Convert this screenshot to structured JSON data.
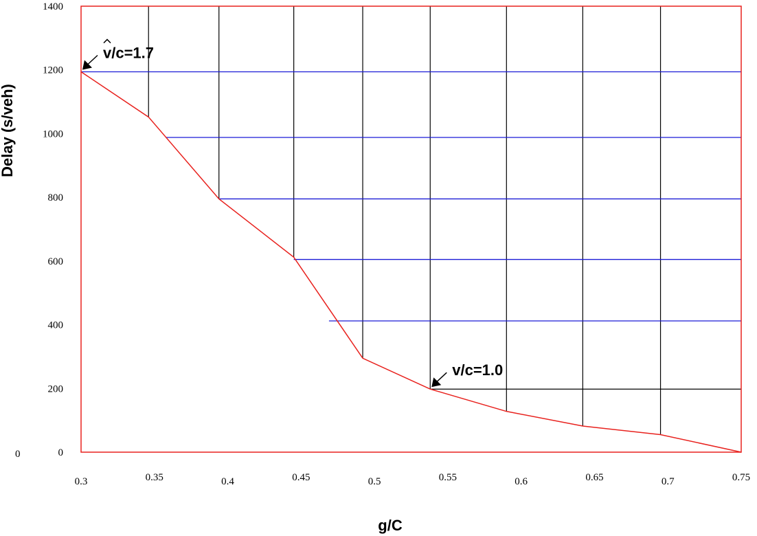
{
  "chart_data": {
    "type": "line",
    "xlabel": "g/C",
    "ylabel": "Delay (s/veh)",
    "xlim": [
      0.3,
      0.75
    ],
    "ylim": [
      0,
      1400
    ],
    "x_tick_labels": [
      "0.3",
      "0.35",
      "0.4",
      "0.45",
      "0.5",
      "0.55",
      "0.6",
      "0.65",
      "0.7",
      "0.75"
    ],
    "y_tick_labels": [
      "0",
      "200",
      "400",
      "600",
      "800",
      "1000",
      "1200",
      "1400"
    ],
    "origin_label": "0",
    "series": [
      {
        "color": "#e8211d",
        "x": [
          0.3,
          0.346,
          0.394,
          0.445,
          0.492,
          0.538,
          0.59,
          0.642,
          0.695,
          0.75
        ],
        "y": [
          1194,
          1052,
          795,
          612,
          295,
          198,
          128,
          82,
          55,
          0
        ]
      }
    ],
    "blue_lines": [
      {
        "y": 1194,
        "x_start": 0.3
      },
      {
        "y": 988,
        "x_start": 0.358
      },
      {
        "y": 795,
        "x_start": 0.394
      },
      {
        "y": 605,
        "x_start": 0.445
      },
      {
        "y": 412,
        "x_start": 0.469
      }
    ],
    "black_hline": {
      "y": 198,
      "x_start": 0.538
    },
    "vertical_grid_x": [
      0.346,
      0.394,
      0.445,
      0.492,
      0.538,
      0.59,
      0.642,
      0.695
    ],
    "annotations": [
      {
        "text": "v/c=1.7",
        "x": 0.3,
        "y": 1194,
        "hat": true
      },
      {
        "text": "v/c=1.0",
        "x": 0.538,
        "y": 198,
        "hat": false
      }
    ],
    "grid": true,
    "legend": "none",
    "colors": {
      "curve": "#e8211d",
      "frame": "#e8211d",
      "levels": "#1a1ad6",
      "grid": "#000000"
    }
  }
}
